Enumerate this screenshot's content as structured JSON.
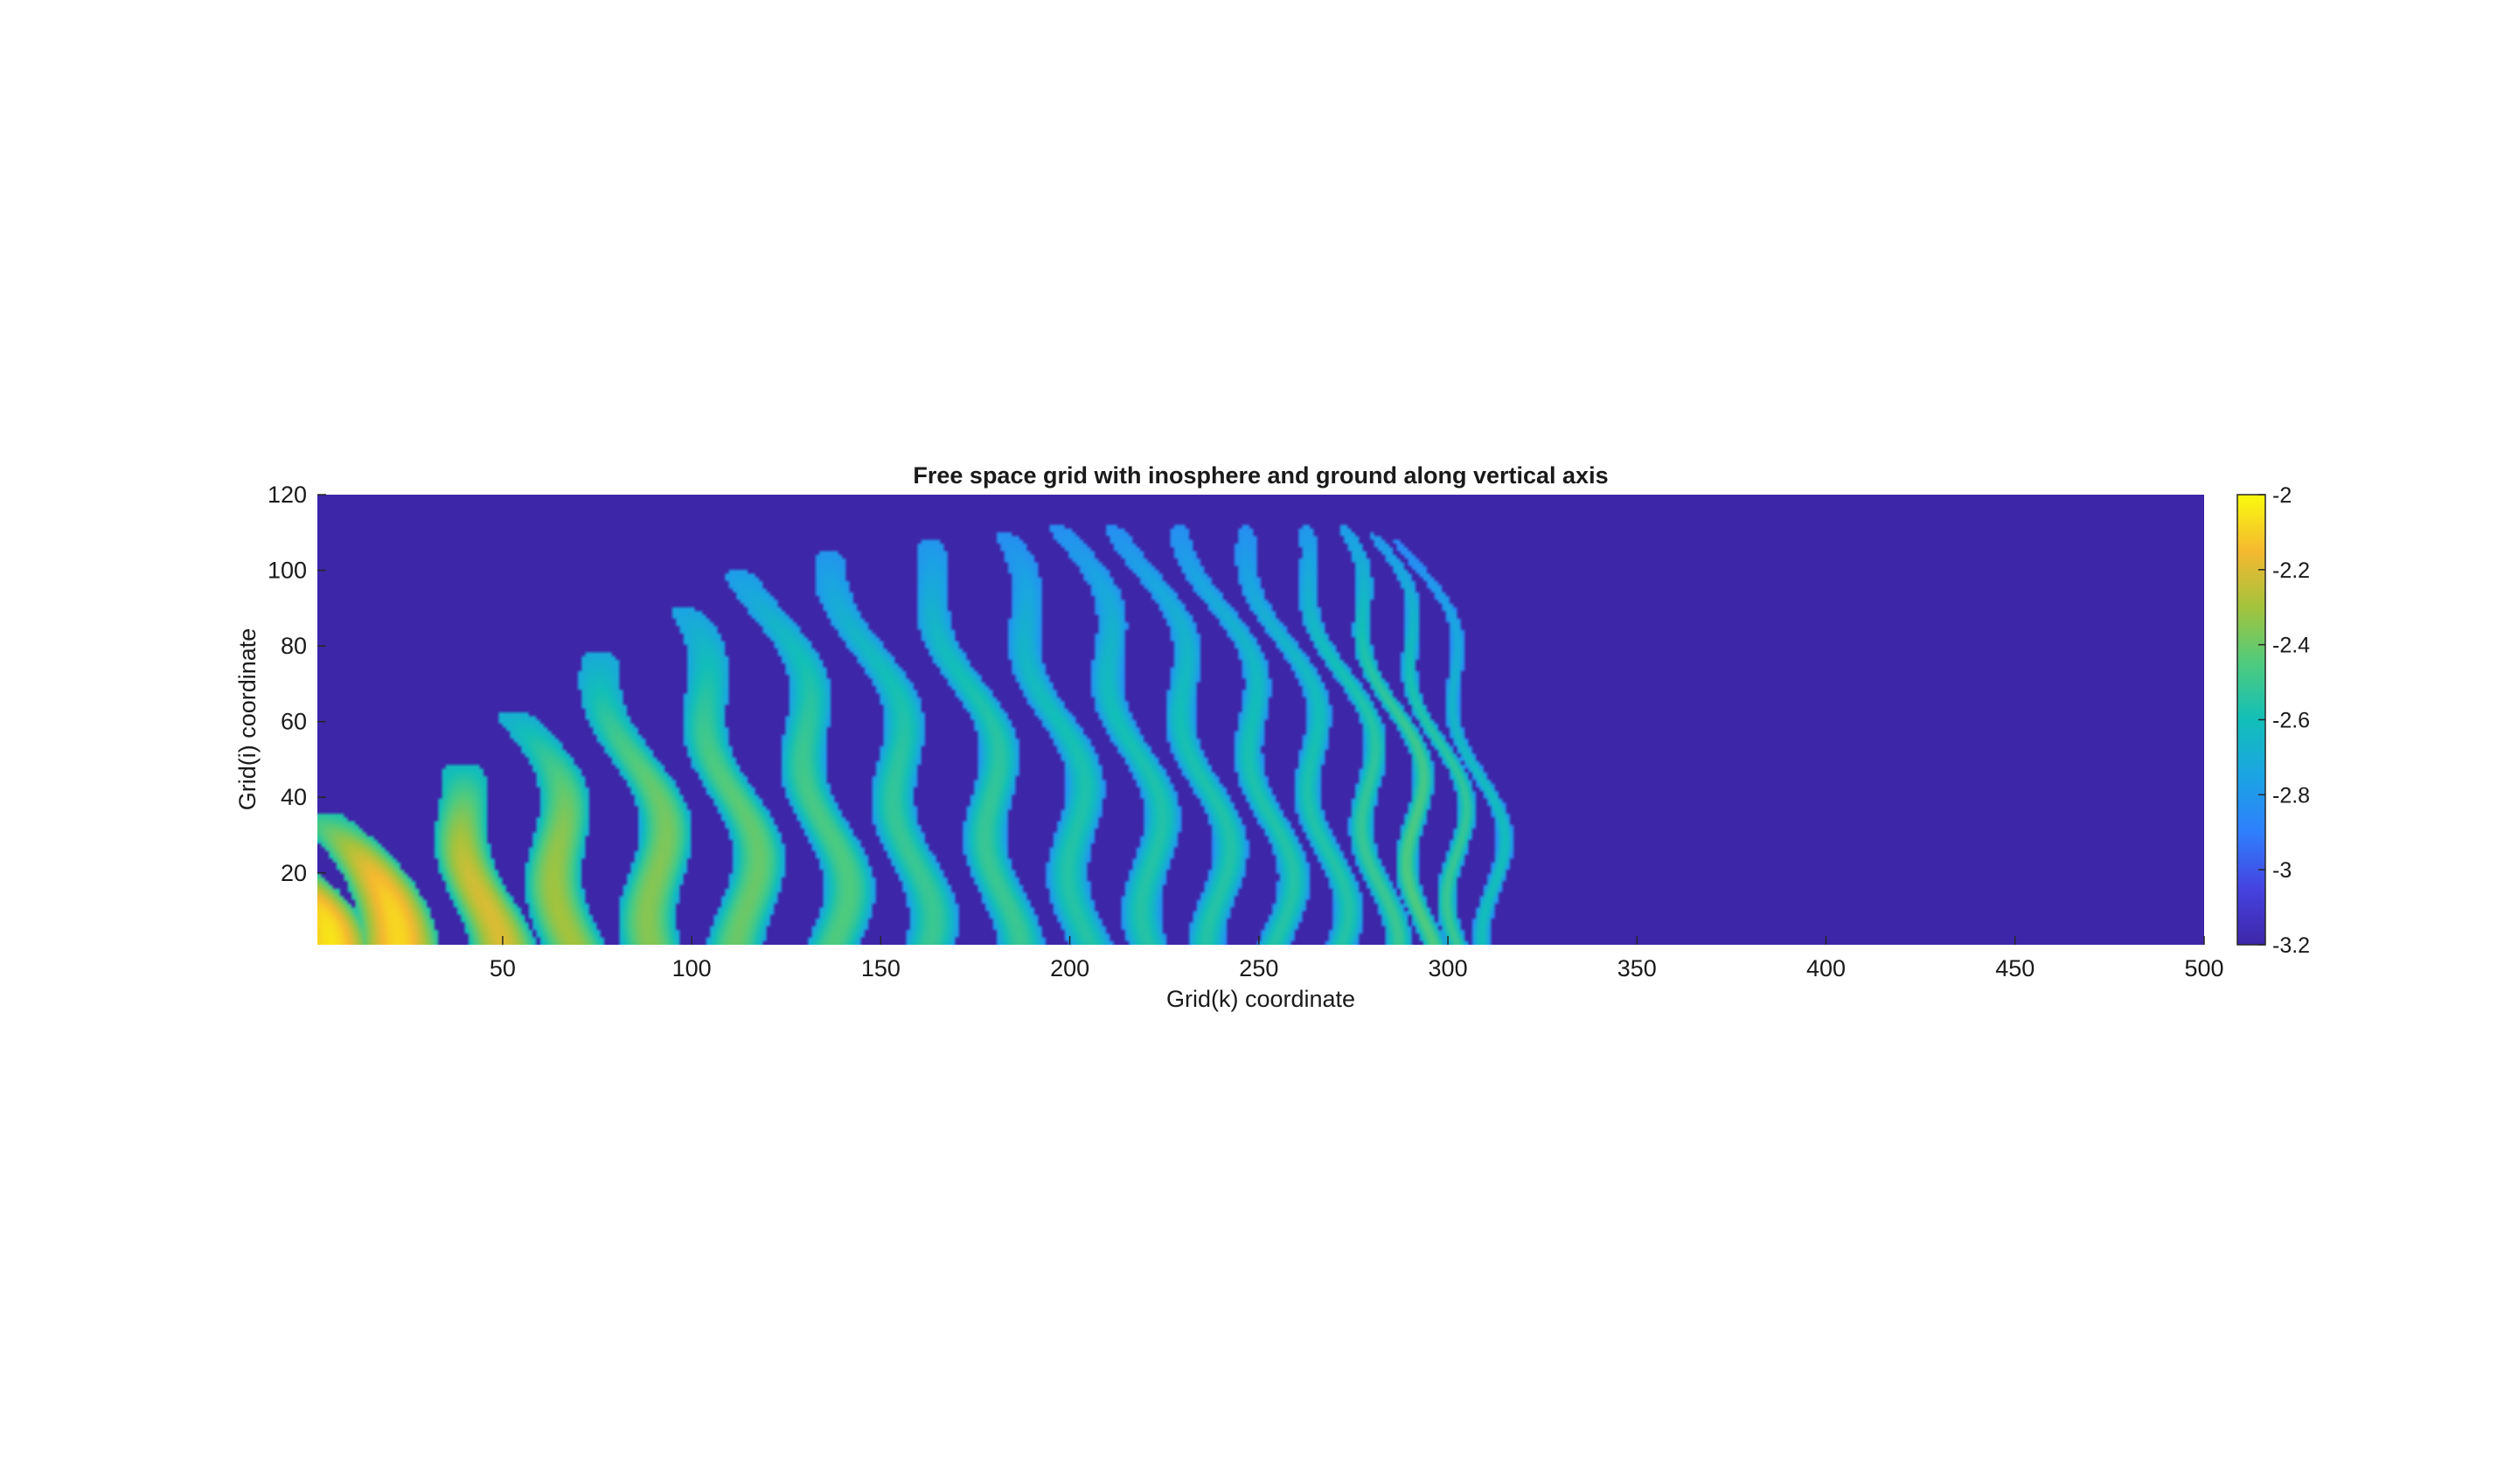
{
  "chart_data": {
    "type": "heatmap",
    "title": "Free space grid with inosphere and ground along vertical axis",
    "xlabel": "Grid(k) coordinate",
    "ylabel": "Grid(i) coordinate",
    "xlim": [
      1,
      500
    ],
    "ylim": [
      1,
      120
    ],
    "x_ticks": [
      50,
      100,
      150,
      200,
      250,
      300,
      350,
      400,
      450,
      500
    ],
    "y_ticks": [
      20,
      40,
      60,
      80,
      100,
      120
    ],
    "x_tick_labels": [
      "50",
      "100",
      "150",
      "200",
      "250",
      "300",
      "350",
      "400",
      "450",
      "500"
    ],
    "y_tick_labels": [
      "20",
      "40",
      "60",
      "80",
      "100",
      "120"
    ],
    "colormap": "parula",
    "color_range": [
      -3.2,
      -2
    ],
    "colorbar": {
      "ticks": [
        -2,
        -2.2,
        -2.4,
        -2.6,
        -2.8,
        -3,
        -3.2
      ],
      "tick_labels": [
        "-2",
        "-2.2",
        "-2.4",
        "-2.6",
        "-2.8",
        "-3",
        "-3.2"
      ]
    },
    "background_value": -3.2,
    "wavefront_extent_k": 320,
    "wave_bands": [
      {
        "k": 4,
        "height": 22,
        "value": -2.05
      },
      {
        "k": 22,
        "height": 35,
        "value": -2.08
      },
      {
        "k": 46,
        "height": 48,
        "value": -2.2
      },
      {
        "k": 68,
        "height": 62,
        "value": -2.3
      },
      {
        "k": 92,
        "height": 78,
        "value": -2.35
      },
      {
        "k": 115,
        "height": 90,
        "value": -2.4
      },
      {
        "k": 138,
        "height": 100,
        "value": -2.45
      },
      {
        "k": 160,
        "height": 105,
        "value": -2.5
      },
      {
        "k": 183,
        "height": 108,
        "value": -2.5
      },
      {
        "k": 204,
        "height": 110,
        "value": -2.55
      },
      {
        "k": 223,
        "height": 112,
        "value": -2.55
      },
      {
        "k": 240,
        "height": 112,
        "value": -2.55
      },
      {
        "k": 256,
        "height": 112,
        "value": -2.55
      },
      {
        "k": 270,
        "height": 112,
        "value": -2.55
      },
      {
        "k": 283,
        "height": 112,
        "value": -2.5
      },
      {
        "k": 294,
        "height": 112,
        "value": -2.45
      },
      {
        "k": 304,
        "height": 110,
        "value": -2.5
      },
      {
        "k": 313,
        "height": 108,
        "value": -2.6
      }
    ]
  }
}
